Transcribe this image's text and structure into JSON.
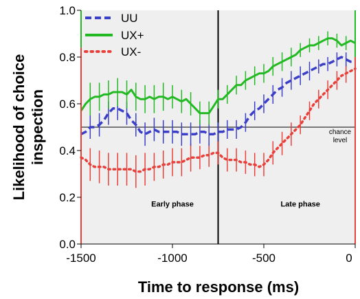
{
  "chart_data": {
    "type": "line",
    "xlabel": "Time to response (ms)",
    "ylabel": "Likelihood of choice\ninspection",
    "xlim": [
      -1500,
      0
    ],
    "ylim": [
      0,
      1
    ],
    "x_ticks": [
      "-1500",
      "-1000",
      "-500",
      "0"
    ],
    "y_ticks": [
      "0.0",
      "0.2",
      "0.4",
      "0.6",
      "0.8",
      "1.0"
    ],
    "chance_level": 0.5,
    "chance_label": [
      "chance",
      "level"
    ],
    "phase_split": -750,
    "phases": [
      {
        "label": "Early phase",
        "at_x": -1000,
        "at_y": 0.16
      },
      {
        "label": "Late phase",
        "at_x": -300,
        "at_y": 0.16
      }
    ],
    "legend": {
      "position": "top-left"
    },
    "colors": {
      "UU": "#3b3fc7",
      "UX+": "#22b922",
      "UX-": "#e8403a",
      "panel": "#efefef"
    },
    "x": [
      -1500,
      -1475,
      -1450,
      -1425,
      -1400,
      -1375,
      -1350,
      -1325,
      -1300,
      -1275,
      -1250,
      -1225,
      -1200,
      -1175,
      -1150,
      -1125,
      -1100,
      -1075,
      -1050,
      -1025,
      -1000,
      -975,
      -950,
      -925,
      -900,
      -875,
      -850,
      -825,
      -800,
      -775,
      -750,
      -725,
      -700,
      -675,
      -650,
      -625,
      -600,
      -575,
      -550,
      -525,
      -500,
      -475,
      -450,
      -425,
      -400,
      -375,
      -350,
      -325,
      -300,
      -275,
      -250,
      -225,
      -200,
      -175,
      -150,
      -125,
      -100,
      -75,
      -50,
      -25,
      0
    ],
    "series": [
      {
        "name": "UU",
        "style": "dashed",
        "values": [
          0.47,
          0.48,
          0.5,
          0.5,
          0.51,
          0.53,
          0.56,
          0.58,
          0.58,
          0.57,
          0.56,
          0.53,
          0.51,
          0.48,
          0.47,
          0.48,
          0.49,
          0.48,
          0.48,
          0.48,
          0.48,
          0.48,
          0.47,
          0.47,
          0.47,
          0.47,
          0.48,
          0.48,
          0.47,
          0.47,
          0.48,
          0.48,
          0.49,
          0.49,
          0.49,
          0.5,
          0.52,
          0.55,
          0.57,
          0.58,
          0.6,
          0.62,
          0.64,
          0.66,
          0.67,
          0.69,
          0.7,
          0.71,
          0.72,
          0.73,
          0.74,
          0.75,
          0.76,
          0.77,
          0.77,
          0.78,
          0.79,
          0.8,
          0.79,
          0.78,
          0.78
        ],
        "err": [
          0.05,
          0.05,
          0.05,
          0.05,
          0.05,
          0.05,
          0.05,
          0.05,
          0.05,
          0.05,
          0.05,
          0.05,
          0.05,
          0.05,
          0.05,
          0.05,
          0.05,
          0.05,
          0.05,
          0.05,
          0.05,
          0.05,
          0.05,
          0.05,
          0.05,
          0.05,
          0.05,
          0.05,
          0.05,
          0.05,
          0.04,
          0.04,
          0.04,
          0.04,
          0.04,
          0.04,
          0.04,
          0.04,
          0.04,
          0.04,
          0.04,
          0.04,
          0.04,
          0.04,
          0.04,
          0.04,
          0.04,
          0.04,
          0.04,
          0.04,
          0.04,
          0.04,
          0.03,
          0.03,
          0.03,
          0.03,
          0.03,
          0.03,
          0.03,
          0.03,
          0.03
        ]
      },
      {
        "name": "UX+",
        "style": "solid",
        "values": [
          0.57,
          0.6,
          0.62,
          0.63,
          0.63,
          0.64,
          0.64,
          0.65,
          0.65,
          0.65,
          0.64,
          0.66,
          0.63,
          0.62,
          0.62,
          0.63,
          0.62,
          0.63,
          0.63,
          0.62,
          0.63,
          0.62,
          0.61,
          0.62,
          0.6,
          0.58,
          0.56,
          0.56,
          0.56,
          0.59,
          0.62,
          0.62,
          0.64,
          0.66,
          0.68,
          0.68,
          0.7,
          0.71,
          0.72,
          0.73,
          0.73,
          0.74,
          0.76,
          0.77,
          0.78,
          0.79,
          0.8,
          0.81,
          0.83,
          0.84,
          0.85,
          0.85,
          0.86,
          0.87,
          0.88,
          0.88,
          0.87,
          0.85,
          0.86,
          0.87,
          0.86
        ],
        "err": [
          0.07,
          0.07,
          0.07,
          0.06,
          0.06,
          0.06,
          0.06,
          0.06,
          0.06,
          0.06,
          0.06,
          0.06,
          0.06,
          0.06,
          0.06,
          0.06,
          0.06,
          0.06,
          0.06,
          0.06,
          0.05,
          0.05,
          0.05,
          0.05,
          0.05,
          0.05,
          0.05,
          0.05,
          0.05,
          0.05,
          0.04,
          0.04,
          0.04,
          0.04,
          0.04,
          0.04,
          0.04,
          0.04,
          0.04,
          0.04,
          0.04,
          0.04,
          0.04,
          0.04,
          0.04,
          0.04,
          0.04,
          0.04,
          0.03,
          0.03,
          0.03,
          0.03,
          0.03,
          0.03,
          0.03,
          0.03,
          0.03,
          0.03,
          0.03,
          0.03,
          0.03
        ]
      },
      {
        "name": "UX-",
        "style": "dotted",
        "values": [
          0.37,
          0.36,
          0.34,
          0.33,
          0.33,
          0.33,
          0.32,
          0.32,
          0.32,
          0.32,
          0.32,
          0.32,
          0.31,
          0.31,
          0.32,
          0.32,
          0.33,
          0.33,
          0.34,
          0.34,
          0.35,
          0.35,
          0.35,
          0.36,
          0.37,
          0.37,
          0.37,
          0.38,
          0.38,
          0.39,
          0.39,
          0.37,
          0.36,
          0.36,
          0.36,
          0.35,
          0.35,
          0.34,
          0.34,
          0.33,
          0.34,
          0.36,
          0.39,
          0.41,
          0.43,
          0.45,
          0.47,
          0.49,
          0.51,
          0.54,
          0.57,
          0.6,
          0.62,
          0.64,
          0.66,
          0.68,
          0.7,
          0.72,
          0.73,
          0.74,
          0.75
        ],
        "err": [
          0.07,
          0.07,
          0.07,
          0.07,
          0.07,
          0.07,
          0.07,
          0.07,
          0.07,
          0.07,
          0.07,
          0.07,
          0.07,
          0.07,
          0.07,
          0.07,
          0.06,
          0.06,
          0.06,
          0.06,
          0.06,
          0.06,
          0.06,
          0.06,
          0.06,
          0.06,
          0.05,
          0.05,
          0.05,
          0.05,
          0.05,
          0.05,
          0.05,
          0.05,
          0.05,
          0.05,
          0.05,
          0.05,
          0.05,
          0.05,
          0.05,
          0.05,
          0.05,
          0.05,
          0.05,
          0.05,
          0.05,
          0.05,
          0.04,
          0.04,
          0.04,
          0.04,
          0.04,
          0.04,
          0.04,
          0.04,
          0.04,
          0.04,
          0.04,
          0.04,
          0.04
        ]
      }
    ]
  }
}
